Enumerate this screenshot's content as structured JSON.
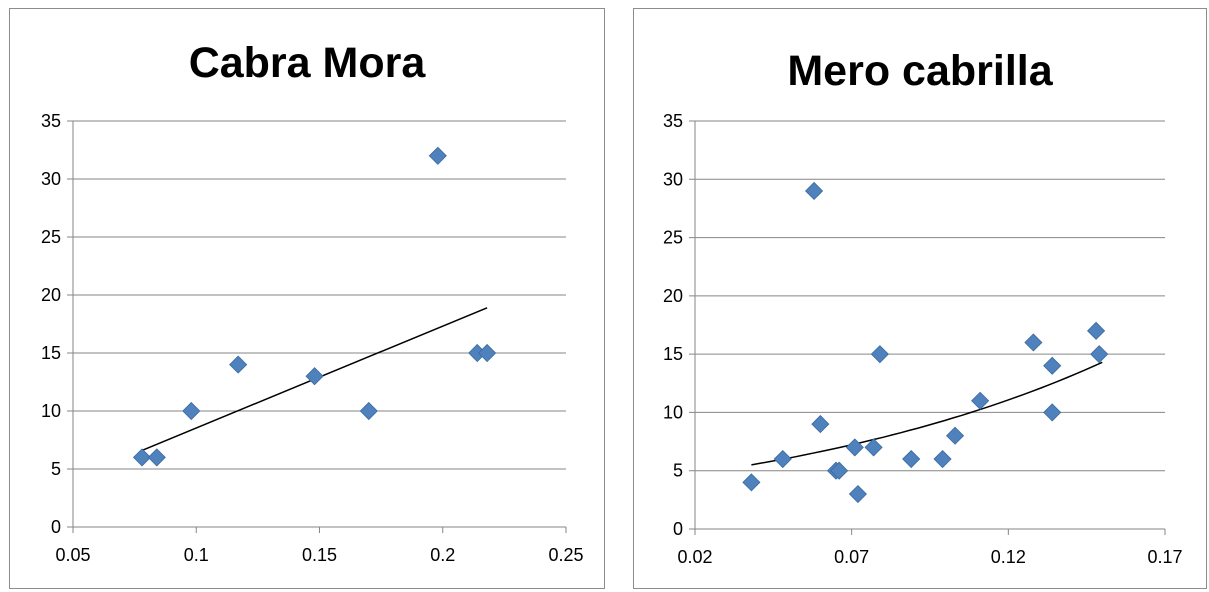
{
  "chart_data": [
    {
      "type": "scatter",
      "title": "Cabra Mora",
      "xlabel": "",
      "ylabel": "",
      "xlim": [
        0.05,
        0.25
      ],
      "ylim": [
        0,
        35
      ],
      "x_ticks": [
        "0.05",
        "0.1",
        "0.15",
        "0.2",
        "0.25"
      ],
      "y_ticks": [
        "0",
        "5",
        "10",
        "15",
        "20",
        "25",
        "30",
        "35"
      ],
      "grid": "horizontal",
      "marker_color": "#4f81bd",
      "trendline": {
        "type": "linear",
        "x": [
          0.078,
          0.218
        ],
        "y": [
          6.6,
          18.9
        ]
      },
      "series": [
        {
          "x": [
            0.078,
            0.084,
            0.098,
            0.117,
            0.148,
            0.17,
            0.198,
            0.214,
            0.218
          ],
          "y": [
            6,
            6,
            10,
            14,
            13,
            10,
            32,
            15,
            15
          ]
        }
      ]
    },
    {
      "type": "scatter",
      "title": "Mero cabrilla",
      "xlabel": "",
      "ylabel": "",
      "xlim": [
        0.02,
        0.17
      ],
      "ylim": [
        0,
        35
      ],
      "x_ticks": [
        "0.02",
        "0.07",
        "0.12",
        "0.17"
      ],
      "y_ticks": [
        "0",
        "5",
        "10",
        "15",
        "20",
        "25",
        "30",
        "35"
      ],
      "grid": "horizontal",
      "marker_color": "#4f81bd",
      "trendline": {
        "type": "exponential",
        "x": [
          0.038,
          0.15
        ],
        "y": [
          5.5,
          14.3
        ]
      },
      "series": [
        {
          "x": [
            0.038,
            0.048,
            0.058,
            0.06,
            0.065,
            0.066,
            0.071,
            0.072,
            0.077,
            0.079,
            0.089,
            0.099,
            0.103,
            0.111,
            0.128,
            0.134,
            0.134,
            0.148,
            0.149
          ],
          "y": [
            4,
            6,
            29,
            9,
            5,
            5,
            7,
            3,
            7,
            15,
            6,
            6,
            8,
            11,
            16,
            14,
            10,
            17,
            15
          ]
        }
      ]
    }
  ]
}
